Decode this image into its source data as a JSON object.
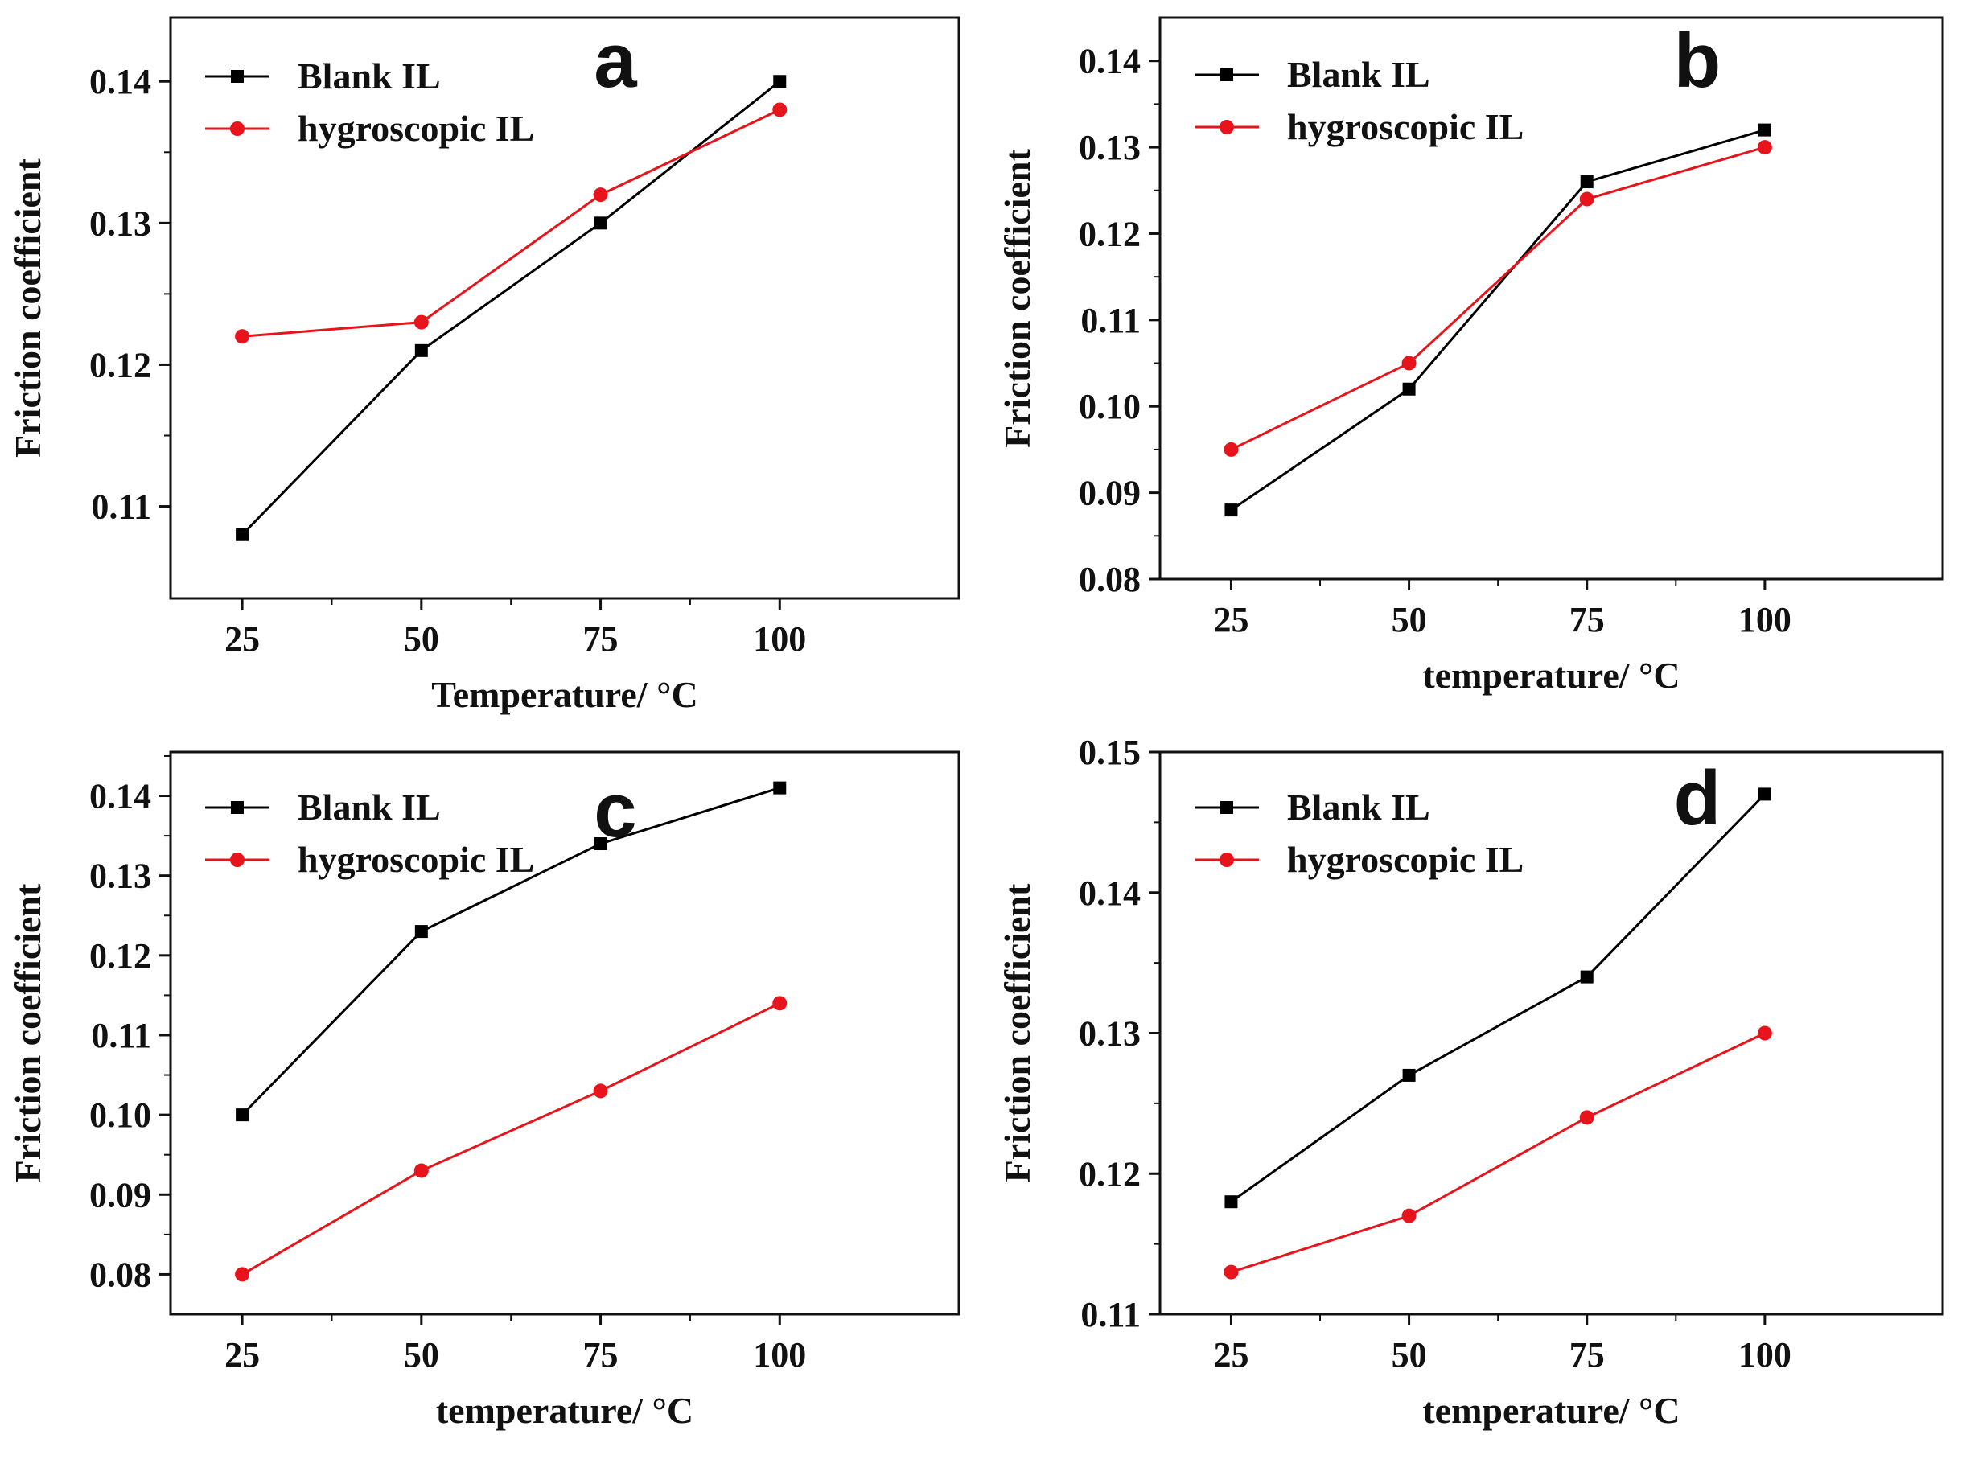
{
  "chart_data": [
    {
      "type": "line",
      "panel_label": "a",
      "xlabel": "Temperature/ °C",
      "ylabel": "Friction coefficient",
      "x": [
        25,
        50,
        75,
        100
      ],
      "xlim": [
        15,
        125
      ],
      "ylim": [
        0.1035,
        0.1445
      ],
      "xticks": [
        "25",
        "50",
        "75",
        "100"
      ],
      "yticks": [
        "0.11",
        "0.12",
        "0.13",
        "0.14"
      ],
      "ytick_values": [
        0.11,
        0.12,
        0.13,
        0.14
      ],
      "legend_position": "top-left",
      "series": [
        {
          "name": "Blank IL",
          "color": "#000000",
          "marker": "square",
          "values": [
            0.108,
            0.121,
            0.13,
            0.14
          ]
        },
        {
          "name": "hygroscopic IL",
          "color": "#e8141b",
          "marker": "circle",
          "values": [
            0.122,
            0.123,
            0.132,
            0.138
          ]
        }
      ]
    },
    {
      "type": "line",
      "panel_label": "b",
      "xlabel": "temperature/ °C",
      "ylabel": "Friction coefficient",
      "x": [
        25,
        50,
        75,
        100
      ],
      "xlim": [
        15,
        125
      ],
      "ylim": [
        0.08,
        0.145
      ],
      "xticks": [
        "25",
        "50",
        "75",
        "100"
      ],
      "yticks": [
        "0.08",
        "0.09",
        "0.10",
        "0.11",
        "0.12",
        "0.13",
        "0.14"
      ],
      "ytick_values": [
        0.08,
        0.09,
        0.1,
        0.11,
        0.12,
        0.13,
        0.14
      ],
      "legend_position": "top-left",
      "series": [
        {
          "name": "Blank IL",
          "color": "#000000",
          "marker": "square",
          "values": [
            0.088,
            0.102,
            0.126,
            0.132
          ]
        },
        {
          "name": "hygroscopic IL",
          "color": "#e8141b",
          "marker": "circle",
          "values": [
            0.095,
            0.105,
            0.124,
            0.13
          ]
        }
      ]
    },
    {
      "type": "line",
      "panel_label": "c",
      "xlabel": "temperature/ °C",
      "ylabel": "Friction coefficient",
      "x": [
        25,
        50,
        75,
        100
      ],
      "xlim": [
        15,
        125
      ],
      "ylim": [
        0.075,
        0.1455
      ],
      "xticks": [
        "25",
        "50",
        "75",
        "100"
      ],
      "yticks": [
        "0.08",
        "0.09",
        "0.10",
        "0.11",
        "0.12",
        "0.13",
        "0.14"
      ],
      "ytick_values": [
        0.08,
        0.09,
        0.1,
        0.11,
        0.12,
        0.13,
        0.14
      ],
      "legend_position": "top-left",
      "series": [
        {
          "name": "Blank IL",
          "color": "#000000",
          "marker": "square",
          "values": [
            0.1,
            0.123,
            0.134,
            0.141
          ]
        },
        {
          "name": "hygroscopic IL",
          "color": "#e8141b",
          "marker": "circle",
          "values": [
            0.08,
            0.093,
            0.103,
            0.114
          ]
        }
      ]
    },
    {
      "type": "line",
      "panel_label": "d",
      "xlabel": "temperature/ °C",
      "ylabel": "Friction coefficient",
      "x": [
        25,
        50,
        75,
        100
      ],
      "xlim": [
        15,
        125
      ],
      "ylim": [
        0.11,
        0.15
      ],
      "xticks": [
        "25",
        "50",
        "75",
        "100"
      ],
      "yticks": [
        "0.11",
        "0.12",
        "0.13",
        "0.14",
        "0.15"
      ],
      "ytick_values": [
        0.11,
        0.12,
        0.13,
        0.14,
        0.15
      ],
      "legend_position": "top-left",
      "series": [
        {
          "name": "Blank IL",
          "color": "#000000",
          "marker": "square",
          "values": [
            0.118,
            0.127,
            0.134,
            0.147
          ]
        },
        {
          "name": "hygroscopic IL",
          "color": "#e8141b",
          "marker": "circle",
          "values": [
            0.113,
            0.117,
            0.124,
            0.13
          ]
        }
      ]
    }
  ]
}
